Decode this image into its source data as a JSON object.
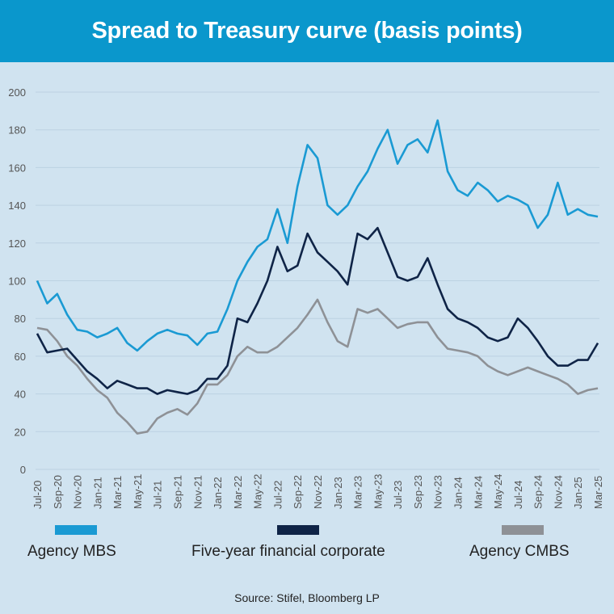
{
  "chart_data": {
    "type": "line",
    "title": "Spread to Treasury curve (basis points)",
    "ylim": [
      0,
      200
    ],
    "yticks": [
      0,
      20,
      40,
      60,
      80,
      100,
      120,
      140,
      160,
      180,
      200
    ],
    "grid": true,
    "legend_placement": "bottom",
    "xticks": [
      "Jul-20",
      "Sep-20",
      "Nov-20",
      "Jan-21",
      "Mar-21",
      "May-21",
      "Jul-21",
      "Sep-21",
      "Nov-21",
      "Jan-22",
      "Mar-22",
      "May-22",
      "Jul-22",
      "Sep-22",
      "Nov-22",
      "Jan-23",
      "Mar-23",
      "May-23",
      "Jul-23",
      "Sep-23",
      "Nov-23",
      "Jan-24",
      "Mar-24",
      "May-24",
      "Jul-24",
      "Sep-24",
      "Nov-24",
      "Jan-25",
      "Mar-25"
    ],
    "x": [
      "Jul-20",
      "Aug-20",
      "Sep-20",
      "Oct-20",
      "Nov-20",
      "Dec-20",
      "Jan-21",
      "Feb-21",
      "Mar-21",
      "Apr-21",
      "May-21",
      "Jun-21",
      "Jul-21",
      "Aug-21",
      "Sep-21",
      "Oct-21",
      "Nov-21",
      "Dec-21",
      "Jan-22",
      "Feb-22",
      "Mar-22",
      "Apr-22",
      "May-22",
      "Jun-22",
      "Jul-22",
      "Aug-22",
      "Sep-22",
      "Oct-22",
      "Nov-22",
      "Dec-22",
      "Jan-23",
      "Feb-23",
      "Mar-23",
      "Apr-23",
      "May-23",
      "Jun-23",
      "Jul-23",
      "Aug-23",
      "Sep-23",
      "Oct-23",
      "Nov-23",
      "Dec-23",
      "Jan-24",
      "Feb-24",
      "Mar-24",
      "Apr-24",
      "May-24",
      "Jun-24",
      "Jul-24",
      "Aug-24",
      "Sep-24",
      "Oct-24",
      "Nov-24",
      "Dec-24",
      "Jan-25",
      "Feb-25",
      "Mar-25"
    ],
    "series": [
      {
        "name": "Agency MBS",
        "color": "#1a9ad3",
        "values": [
          100,
          88,
          93,
          82,
          74,
          73,
          70,
          72,
          75,
          67,
          63,
          68,
          72,
          74,
          72,
          71,
          66,
          72,
          73,
          85,
          100,
          110,
          118,
          122,
          138,
          120,
          150,
          172,
          165,
          140,
          135,
          140,
          150,
          158,
          170,
          180,
          162,
          172,
          175,
          168,
          185,
          158,
          148,
          145,
          152,
          148,
          142,
          145,
          143,
          140,
          128,
          135,
          152,
          135,
          138,
          135,
          134
        ]
      },
      {
        "name": "Five-year financial corporate",
        "color": "#0f2447",
        "values": [
          72,
          62,
          63,
          64,
          58,
          52,
          48,
          43,
          47,
          45,
          43,
          43,
          40,
          42,
          41,
          40,
          42,
          48,
          48,
          55,
          80,
          78,
          88,
          100,
          118,
          105,
          108,
          125,
          115,
          110,
          105,
          98,
          125,
          122,
          128,
          115,
          102,
          100,
          102,
          112,
          98,
          85,
          80,
          78,
          75,
          70,
          68,
          70,
          80,
          75,
          68,
          60,
          55,
          55,
          58,
          58,
          67
        ]
      },
      {
        "name": "Agency CMBS",
        "color": "#8e9196",
        "values": [
          75,
          74,
          68,
          60,
          55,
          48,
          42,
          38,
          30,
          25,
          19,
          20,
          27,
          30,
          32,
          29,
          35,
          45,
          45,
          50,
          60,
          65,
          62,
          62,
          65,
          70,
          75,
          82,
          90,
          78,
          68,
          65,
          85,
          83,
          85,
          80,
          75,
          77,
          78,
          78,
          70,
          64,
          63,
          62,
          60,
          55,
          52,
          50,
          52,
          54,
          52,
          50,
          48,
          45,
          40,
          42,
          43
        ]
      }
    ]
  },
  "source": "Source: Stifel, Bloomberg LP"
}
